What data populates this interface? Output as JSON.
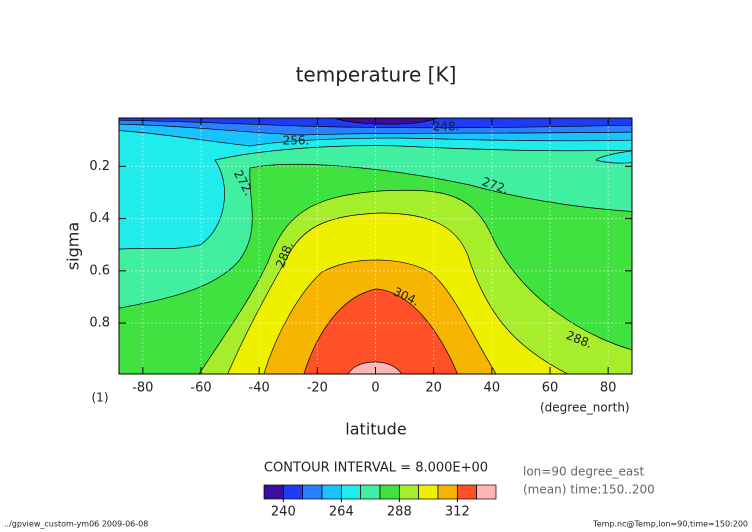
{
  "chart_data": {
    "type": "contour",
    "title": "temperature [K]",
    "x_label": "latitude",
    "x_unit": "(degree_north)",
    "y_label": "sigma",
    "y_unit": "(1)",
    "xlim": [
      -88.2,
      88.2
    ],
    "xticks": [
      -80,
      -60,
      -40,
      -20,
      0,
      20,
      40,
      60,
      80
    ],
    "ylim": [
      0.015,
      0.995
    ],
    "yticks": [
      0.2,
      0.4,
      0.6,
      0.8
    ],
    "y_inverted": true,
    "grid": true,
    "contour_interval": "CONTOUR INTERVAL = 8.000E+00",
    "contour_labels": [
      "256.",
      "248.",
      "272.",
      "272.",
      "288.",
      "304.",
      "288."
    ],
    "colorbar": {
      "levels": [
        232,
        240,
        248,
        256,
        264,
        272,
        280,
        288,
        296,
        304,
        312,
        320,
        328
      ],
      "colors": [
        "#3a0fa0",
        "#1f3cf5",
        "#2a80ff",
        "#19c3ff",
        "#20ecec",
        "#40f0a0",
        "#3fe23f",
        "#a6ee2c",
        "#eef000",
        "#f7b400",
        "#ff5028",
        "#ffb6b6"
      ],
      "ticks": [
        240,
        264,
        288,
        312
      ]
    },
    "notes": [
      "lon=90 degree_east",
      "(mean) time:150..200"
    ],
    "footer_left": "../gpview_custom-ym06  2009-06-08",
    "footer_right": "Temp.nc@Temp,lon=90,time=150:200"
  }
}
